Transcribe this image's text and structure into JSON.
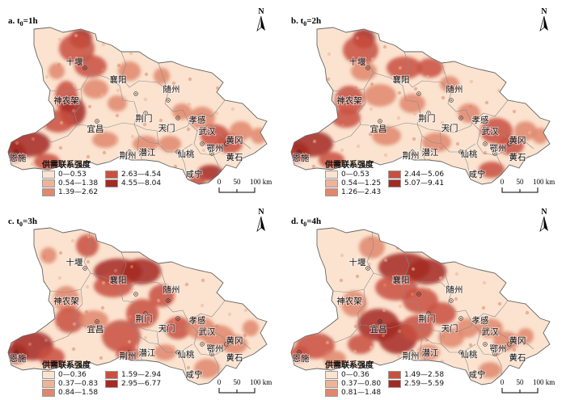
{
  "legend_title": "供需联系强度",
  "colors": [
    "#fbe3cf",
    "#efb497",
    "#e0876c",
    "#c9503f",
    "#a42a25"
  ],
  "background": "#fbe3cf",
  "panels": [
    {
      "id": "a",
      "title_prefix": "a. t",
      "title_sub": "0",
      "title_suffix": "=1h",
      "classes": [
        "0—0.53",
        "0.54—1.38",
        "1.39—2.62",
        "2.63—4.54",
        "4.55—8.04"
      ]
    },
    {
      "id": "b",
      "title_prefix": "b. t",
      "title_sub": "0",
      "title_suffix": "=2h",
      "classes": [
        "0—0.53",
        "0.54—1.25",
        "1.26—2.43",
        "2.44—5.06",
        "5.07—9.41"
      ]
    },
    {
      "id": "c",
      "title_prefix": "c. t",
      "title_sub": "0",
      "title_suffix": "=3h",
      "classes": [
        "0—0.36",
        "0.37—0.83",
        "0.84—1.58",
        "1.59—2.94",
        "2.95—6.77"
      ]
    },
    {
      "id": "d",
      "title_prefix": "d. t",
      "title_sub": "0",
      "title_suffix": "=4h",
      "classes": [
        "0—0.36",
        "0.37—0.80",
        "0.81—1.48",
        "1.49—2.58",
        "2.59—5.59"
      ]
    }
  ],
  "cities": [
    "十堰",
    "襄阳",
    "随州",
    "神农架",
    "孝感",
    "荆门",
    "宜昌",
    "天门",
    "武汉",
    "黄冈",
    "鄂州",
    "恩施",
    "潜江",
    "仙桃",
    "荆州",
    "黄石",
    "咸宁"
  ],
  "north_label": "N",
  "scale": {
    "ticks": [
      "0",
      "50",
      "100 km"
    ]
  }
}
